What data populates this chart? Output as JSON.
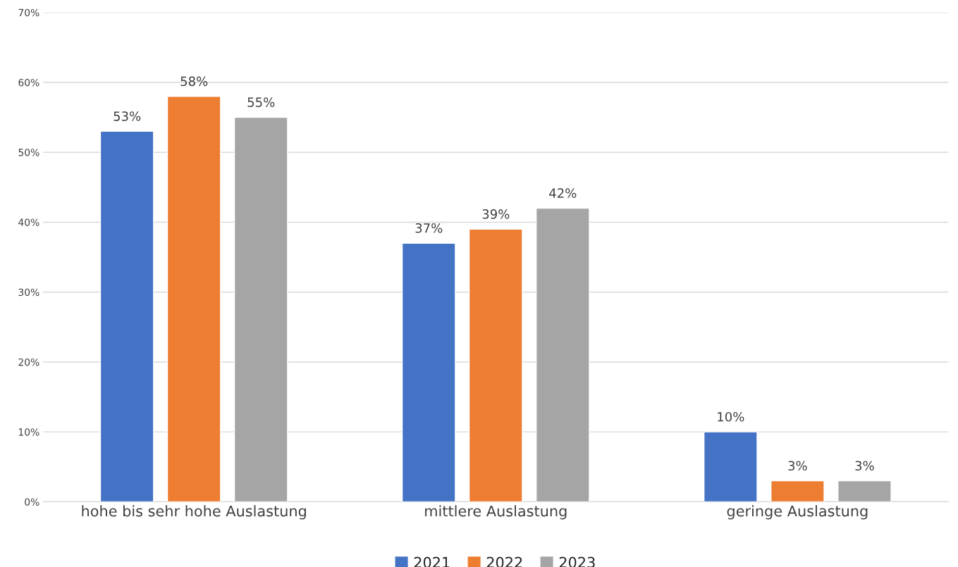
{
  "chart_data": {
    "type": "bar",
    "categories": [
      "hohe bis sehr hohe Auslastung",
      "mittlere Auslastung",
      "geringe Auslastung"
    ],
    "series": [
      {
        "name": "2021",
        "color": "#4472c4",
        "values": [
          53,
          37,
          10
        ],
        "value_labels": [
          "53%",
          "37%",
          "10%"
        ]
      },
      {
        "name": "2022",
        "color": "#ed7d31",
        "values": [
          58,
          39,
          3
        ],
        "value_labels": [
          "58%",
          "39%",
          "3%"
        ]
      },
      {
        "name": "2023",
        "color": "#a5a5a5",
        "values": [
          55,
          42,
          3
        ],
        "value_labels": [
          "55%",
          "42%",
          "3%"
        ]
      }
    ],
    "ylim": [
      0,
      70
    ],
    "yticks": [
      {
        "value": 0,
        "label": "0%"
      },
      {
        "value": 10,
        "label": "10%"
      },
      {
        "value": 20,
        "label": "20%"
      },
      {
        "value": 30,
        "label": "30%"
      },
      {
        "value": 40,
        "label": "40%"
      },
      {
        "value": 50,
        "label": "50%"
      },
      {
        "value": 60,
        "label": "60%"
      },
      {
        "value": 70,
        "label": "70%"
      }
    ],
    "grid": "y",
    "legend": "bottom"
  }
}
